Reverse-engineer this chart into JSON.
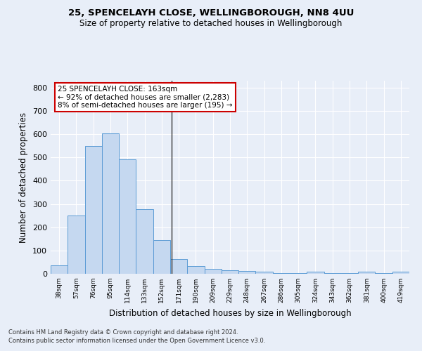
{
  "title_line1": "25, SPENCELAYH CLOSE, WELLINGBOROUGH, NN8 4UU",
  "title_line2": "Size of property relative to detached houses in Wellingborough",
  "xlabel": "Distribution of detached houses by size in Wellingborough",
  "ylabel": "Number of detached properties",
  "categories": [
    "38sqm",
    "57sqm",
    "76sqm",
    "95sqm",
    "114sqm",
    "133sqm",
    "152sqm",
    "171sqm",
    "190sqm",
    "209sqm",
    "229sqm",
    "248sqm",
    "267sqm",
    "286sqm",
    "305sqm",
    "324sqm",
    "343sqm",
    "362sqm",
    "381sqm",
    "400sqm",
    "419sqm"
  ],
  "values": [
    35,
    250,
    548,
    603,
    493,
    278,
    145,
    62,
    32,
    22,
    15,
    12,
    8,
    4,
    4,
    8,
    4,
    4,
    8,
    2,
    8
  ],
  "bar_color": "#c5d8f0",
  "bar_edge_color": "#5b9bd5",
  "background_color": "#e8eef8",
  "grid_color": "#ffffff",
  "vline_color": "#333333",
  "annotation_title": "25 SPENCELAYH CLOSE: 163sqm",
  "annotation_line2": "← 92% of detached houses are smaller (2,283)",
  "annotation_line3": "8% of semi-detached houses are larger (195) →",
  "annotation_box_color": "#ffffff",
  "annotation_box_edge": "#cc0000",
  "footnote_line1": "Contains HM Land Registry data © Crown copyright and database right 2024.",
  "footnote_line2": "Contains public sector information licensed under the Open Government Licence v3.0.",
  "ylim": [
    0,
    830
  ],
  "yticks": [
    0,
    100,
    200,
    300,
    400,
    500,
    600,
    700,
    800
  ]
}
